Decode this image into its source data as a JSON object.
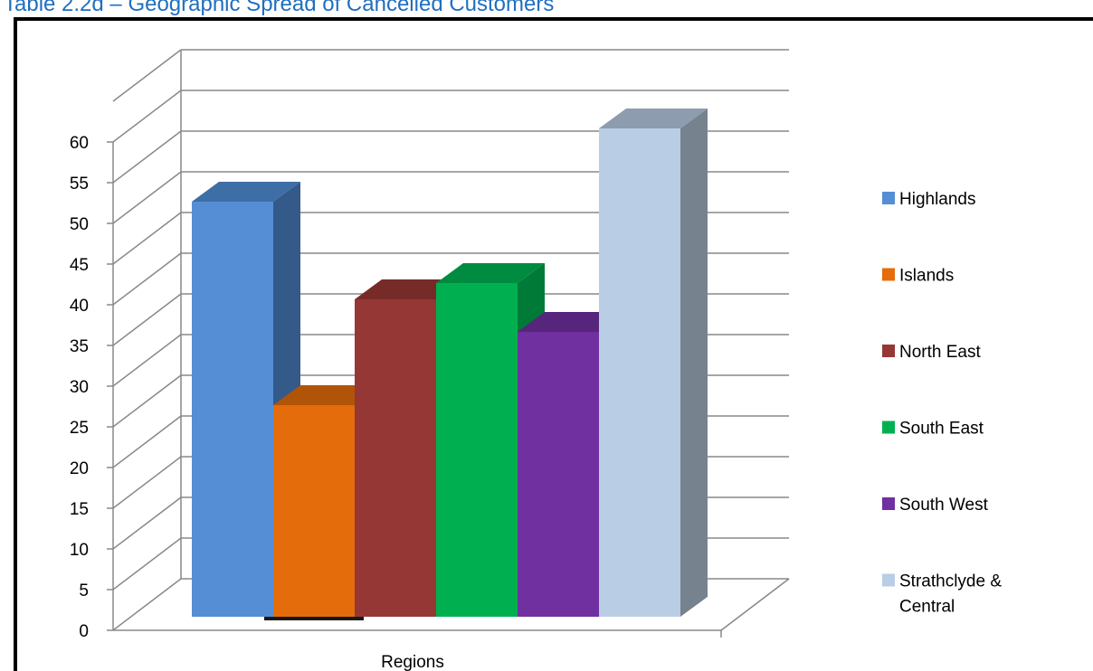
{
  "page": {
    "title": "Table 2.2d – Geographic Spread of Cancelled Customers"
  },
  "chart_data": {
    "type": "bar",
    "style": "3d-clustered-column",
    "xlabel": "Regions",
    "ylabel": "",
    "ylim": [
      0,
      60
    ],
    "y_ticks": [
      0,
      5,
      10,
      15,
      20,
      25,
      30,
      35,
      40,
      45,
      50,
      55,
      60
    ],
    "grid": true,
    "legend_position": "right",
    "series": [
      {
        "name": "Highlands",
        "values": [
          51
        ],
        "color": "#558ED5",
        "side_color": "#345A8A",
        "top_color": "#3E6EA6"
      },
      {
        "name": "Islands",
        "values": [
          26
        ],
        "color": "#E46C0A",
        "side_color": "#984807",
        "top_color": "#B05408"
      },
      {
        "name": "North East",
        "values": [
          39
        ],
        "color": "#953735",
        "side_color": "#632523",
        "top_color": "#772B29"
      },
      {
        "name": "South East",
        "values": [
          41
        ],
        "color": "#00B050",
        "side_color": "#007A37",
        "top_color": "#008C40"
      },
      {
        "name": "South West",
        "values": [
          35
        ],
        "color": "#7030A0",
        "side_color": "#4B206B",
        "top_color": "#56257C"
      },
      {
        "name": "Strathclyde & Central",
        "legend_lines": [
          "Strathclyde &",
          "Central"
        ],
        "values": [
          60
        ],
        "color": "#B9CDE5",
        "side_color": "#77828F",
        "top_color": "#8D9DAF"
      }
    ]
  }
}
